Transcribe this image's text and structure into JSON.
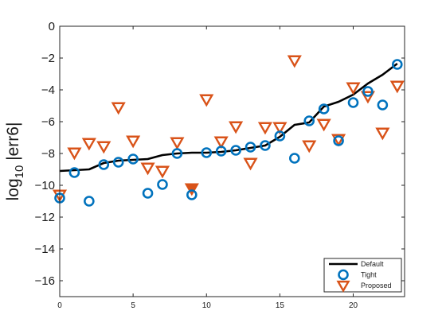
{
  "chart_data": {
    "type": "line",
    "xlim": [
      0,
      23.5
    ],
    "ylim": [
      -17,
      0
    ],
    "x_ticks": [
      {
        "value": 0,
        "label": "0"
      },
      {
        "value": 5,
        "label": "5"
      },
      {
        "value": 10,
        "label": "10"
      },
      {
        "value": 15,
        "label": "15"
      },
      {
        "value": 20,
        "label": "20"
      }
    ],
    "y_ticks": [
      {
        "value": 0,
        "label": "0"
      },
      {
        "value": -2,
        "label": "−2"
      },
      {
        "value": -4,
        "label": "−4"
      },
      {
        "value": -6,
        "label": "−6"
      },
      {
        "value": -8,
        "label": "−8"
      },
      {
        "value": -10,
        "label": "−10"
      },
      {
        "value": -12,
        "label": "−12"
      },
      {
        "value": -14,
        "label": "−14"
      },
      {
        "value": -16,
        "label": "−16"
      }
    ],
    "ylabel": {
      "prefix": "log",
      "subscript": "10",
      "suffix": " |err6|"
    },
    "grid": false,
    "legend_position": "bottom-right",
    "series": [
      {
        "name": "Default",
        "style": "line",
        "color": "#000000",
        "x": [
          0,
          1,
          2,
          3,
          4,
          5,
          6,
          7,
          8,
          9,
          10,
          11,
          12,
          13,
          14,
          15,
          16,
          17,
          18,
          19,
          20,
          21,
          22,
          23
        ],
        "y": [
          -9.1,
          -9.05,
          -9.0,
          -8.6,
          -8.45,
          -8.4,
          -8.35,
          -8.1,
          -8.0,
          -7.95,
          -7.95,
          -7.9,
          -7.8,
          -7.65,
          -7.5,
          -6.95,
          -6.2,
          -6.05,
          -5.05,
          -4.75,
          -4.3,
          -3.6,
          -3.05,
          -2.35
        ]
      },
      {
        "name": "Tight",
        "style": "circle",
        "color": "#0072BD",
        "x": [
          0,
          1,
          2,
          3,
          4,
          5,
          6,
          7,
          8,
          9,
          10,
          11,
          12,
          13,
          14,
          15,
          16,
          17,
          18,
          19,
          20,
          21,
          22,
          23
        ],
        "y": [
          -10.8,
          -9.2,
          -11.0,
          -8.7,
          -8.55,
          -8.35,
          -10.5,
          -9.95,
          -8.0,
          -10.6,
          -7.95,
          -7.85,
          -7.8,
          -7.6,
          -7.5,
          -6.9,
          -8.3,
          -5.95,
          -5.2,
          -7.2,
          -4.8,
          -4.1,
          -4.95,
          -2.4
        ]
      },
      {
        "name": "Proposed",
        "style": "triangle-down",
        "color": "#D95319",
        "x": [
          0,
          1,
          2,
          3,
          4,
          5,
          6,
          7,
          8,
          9,
          10,
          11,
          12,
          13,
          14,
          15,
          16,
          17,
          18,
          19,
          20,
          21,
          22,
          23
        ],
        "y": [
          -10.6,
          -7.95,
          -7.35,
          -7.55,
          -5.1,
          -7.2,
          -8.9,
          -9.1,
          -7.3,
          -10.2,
          -4.6,
          -7.25,
          -6.3,
          -8.6,
          -6.35,
          -6.35,
          -2.15,
          -7.5,
          -6.15,
          -7.1,
          -3.85,
          -4.4,
          -6.7,
          -3.75
        ]
      }
    ],
    "filled_marker": {
      "series": "Proposed",
      "x": 9
    }
  }
}
